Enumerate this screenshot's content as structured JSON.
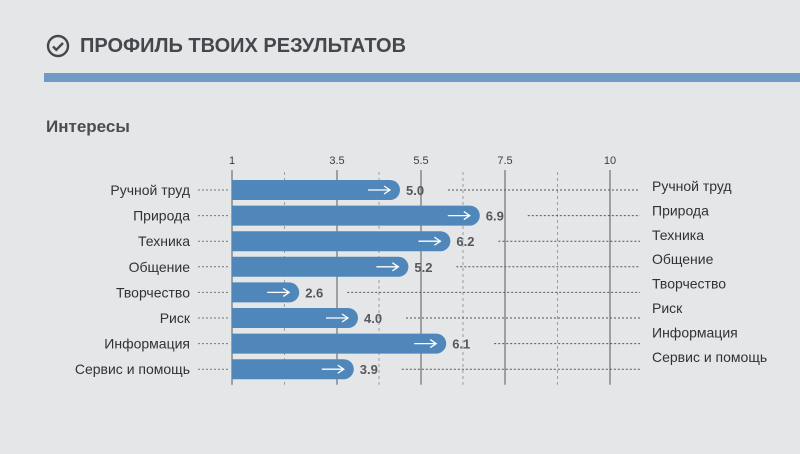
{
  "header": {
    "title": "ПРОФИЛЬ ТВОИХ РЕЗУЛЬТАТОВ",
    "icon": "check-circle-icon"
  },
  "section_title": "Интересы",
  "colors": {
    "bar": "#4f87ba",
    "rule": "#6f9bc6"
  },
  "chart_data": {
    "type": "bar",
    "orientation": "horizontal",
    "title": "Интересы",
    "categories": [
      "Ручной труд",
      "Природа",
      "Техника",
      "Общение",
      "Творчество",
      "Риск",
      "Информация",
      "Сервис и помощь"
    ],
    "values": [
      5.0,
      6.9,
      6.2,
      5.2,
      2.6,
      4.0,
      6.1,
      3.9
    ],
    "value_labels": [
      "5.0",
      "6.9",
      "6.2",
      "5.2",
      "2.6",
      "4.0",
      "6.1",
      "3.9"
    ],
    "xlim": [
      1,
      10
    ],
    "xticks": [
      1,
      3.5,
      5.5,
      7.5,
      10
    ],
    "xtick_labels": [
      "1",
      "3.5",
      "5.5",
      "7.5",
      "10"
    ],
    "minor_gridlines": [
      2.25,
      4.5,
      6.5,
      8.75
    ],
    "grid": true,
    "right_labels": [
      "Ручной труд",
      "Природа",
      "Техника",
      "Общение",
      "Творчество",
      "Риск",
      "Информация",
      "Сервис и помощь"
    ]
  }
}
